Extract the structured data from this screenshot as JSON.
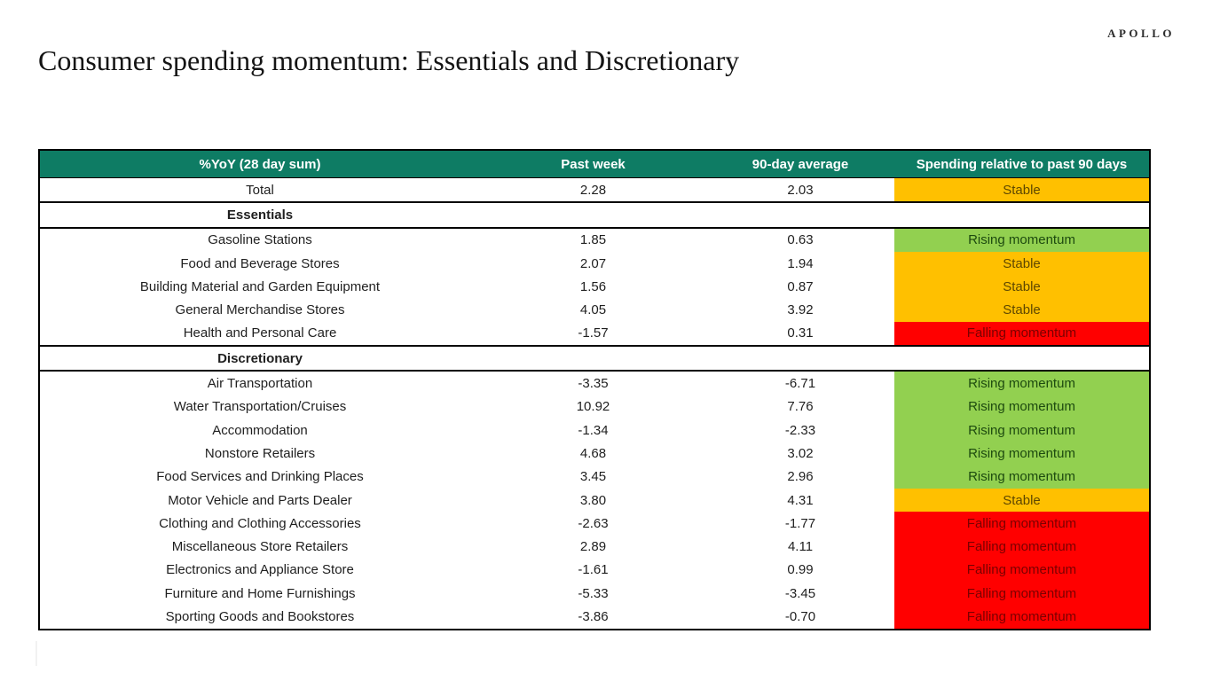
{
  "page": {
    "logo": "APOLLO",
    "title": "Consumer spending momentum: Essentials and Discretionary"
  },
  "colors": {
    "header_bg": "#0E7C64",
    "header_text": "#FFFFFF",
    "rising_bg": "#92D050",
    "rising_text": "#1D4A0F",
    "stable_bg": "#FFC000",
    "stable_text": "#5E4700",
    "falling_bg": "#FF0000",
    "falling_text": "#7A0000"
  },
  "chart_data": {
    "type": "table",
    "title": "Consumer spending momentum: Essentials and Discretionary",
    "columns": [
      "%YoY (28 day sum)",
      "Past week",
      "90-day average",
      "Spending relative to past 90 days"
    ],
    "rows": [
      {
        "type": "data",
        "label": "Total",
        "past_week": "2.28",
        "avg_90": "2.03",
        "status": "Stable",
        "kind": "stable"
      },
      {
        "type": "section",
        "label": "Essentials"
      },
      {
        "type": "data",
        "label": "Gasoline Stations",
        "past_week": "1.85",
        "avg_90": "0.63",
        "status": "Rising momentum",
        "kind": "rising"
      },
      {
        "type": "data",
        "label": "Food and Beverage Stores",
        "past_week": "2.07",
        "avg_90": "1.94",
        "status": "Stable",
        "kind": "stable"
      },
      {
        "type": "data",
        "label": "Building Material and Garden Equipment",
        "past_week": "1.56",
        "avg_90": "0.87",
        "status": "Stable",
        "kind": "stable"
      },
      {
        "type": "data",
        "label": "General Merchandise Stores",
        "past_week": "4.05",
        "avg_90": "3.92",
        "status": "Stable",
        "kind": "stable"
      },
      {
        "type": "data",
        "label": "Health and Personal Care",
        "past_week": "-1.57",
        "avg_90": "0.31",
        "status": "Falling momentum",
        "kind": "falling"
      },
      {
        "type": "section",
        "label": "Discretionary"
      },
      {
        "type": "data",
        "label": "Air Transportation",
        "past_week": "-3.35",
        "avg_90": "-6.71",
        "status": "Rising momentum",
        "kind": "rising"
      },
      {
        "type": "data",
        "label": "Water Transportation/Cruises",
        "past_week": "10.92",
        "avg_90": "7.76",
        "status": "Rising momentum",
        "kind": "rising"
      },
      {
        "type": "data",
        "label": "Accommodation",
        "past_week": "-1.34",
        "avg_90": "-2.33",
        "status": "Rising momentum",
        "kind": "rising"
      },
      {
        "type": "data",
        "label": "Nonstore Retailers",
        "past_week": "4.68",
        "avg_90": "3.02",
        "status": "Rising momentum",
        "kind": "rising"
      },
      {
        "type": "data",
        "label": "Food Services and Drinking Places",
        "past_week": "3.45",
        "avg_90": "2.96",
        "status": "Rising momentum",
        "kind": "rising"
      },
      {
        "type": "data",
        "label": "Motor Vehicle and Parts Dealer",
        "past_week": "3.80",
        "avg_90": "4.31",
        "status": "Stable",
        "kind": "stable"
      },
      {
        "type": "data",
        "label": "Clothing and Clothing Accessories",
        "past_week": "-2.63",
        "avg_90": "-1.77",
        "status": "Falling momentum",
        "kind": "falling"
      },
      {
        "type": "data",
        "label": "Miscellaneous Store Retailers",
        "past_week": "2.89",
        "avg_90": "4.11",
        "status": "Falling momentum",
        "kind": "falling"
      },
      {
        "type": "data",
        "label": "Electronics and Appliance Store",
        "past_week": "-1.61",
        "avg_90": "0.99",
        "status": "Falling momentum",
        "kind": "falling"
      },
      {
        "type": "data",
        "label": "Furniture and Home Furnishings",
        "past_week": "-5.33",
        "avg_90": "-3.45",
        "status": "Falling momentum",
        "kind": "falling"
      },
      {
        "type": "data",
        "label": "Sporting Goods and Bookstores",
        "past_week": "-3.86",
        "avg_90": "-0.70",
        "status": "Falling momentum",
        "kind": "falling"
      }
    ]
  }
}
